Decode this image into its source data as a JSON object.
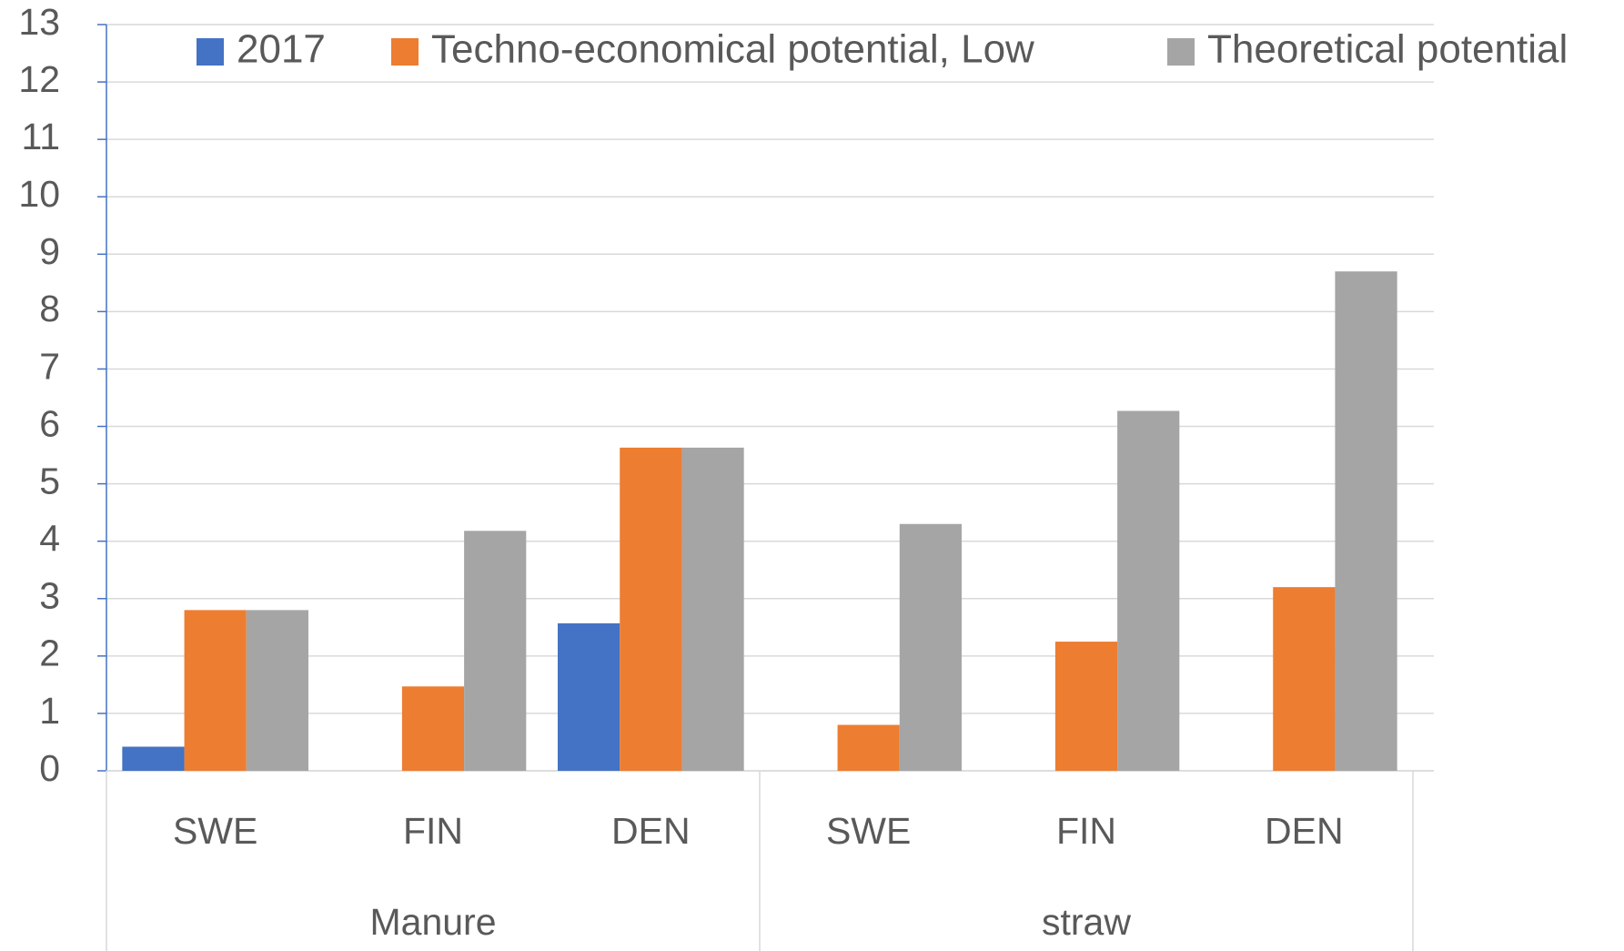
{
  "chart_data": {
    "type": "bar",
    "categories": [
      "SWE",
      "FIN",
      "DEN",
      "SWE",
      "FIN",
      "DEN"
    ],
    "groups": [
      "Manure",
      "straw"
    ],
    "series": [
      {
        "name": "2017",
        "color": "#4472c4",
        "values": [
          0.42,
          0,
          2.57,
          0,
          0,
          0
        ]
      },
      {
        "name": "Techno-economical potential, Low",
        "color": "#ed7d31",
        "values": [
          2.8,
          1.47,
          5.63,
          0.8,
          2.25,
          3.2
        ]
      },
      {
        "name": "Theoretical potential",
        "color": "#a5a5a5",
        "values": [
          2.8,
          4.18,
          5.63,
          4.3,
          6.27,
          8.7
        ]
      }
    ],
    "ylim": [
      0,
      13
    ],
    "yticks": [
      0,
      1,
      2,
      3,
      4,
      5,
      6,
      7,
      8,
      9,
      10,
      11,
      12,
      13
    ],
    "grid": true,
    "legend": "top"
  }
}
